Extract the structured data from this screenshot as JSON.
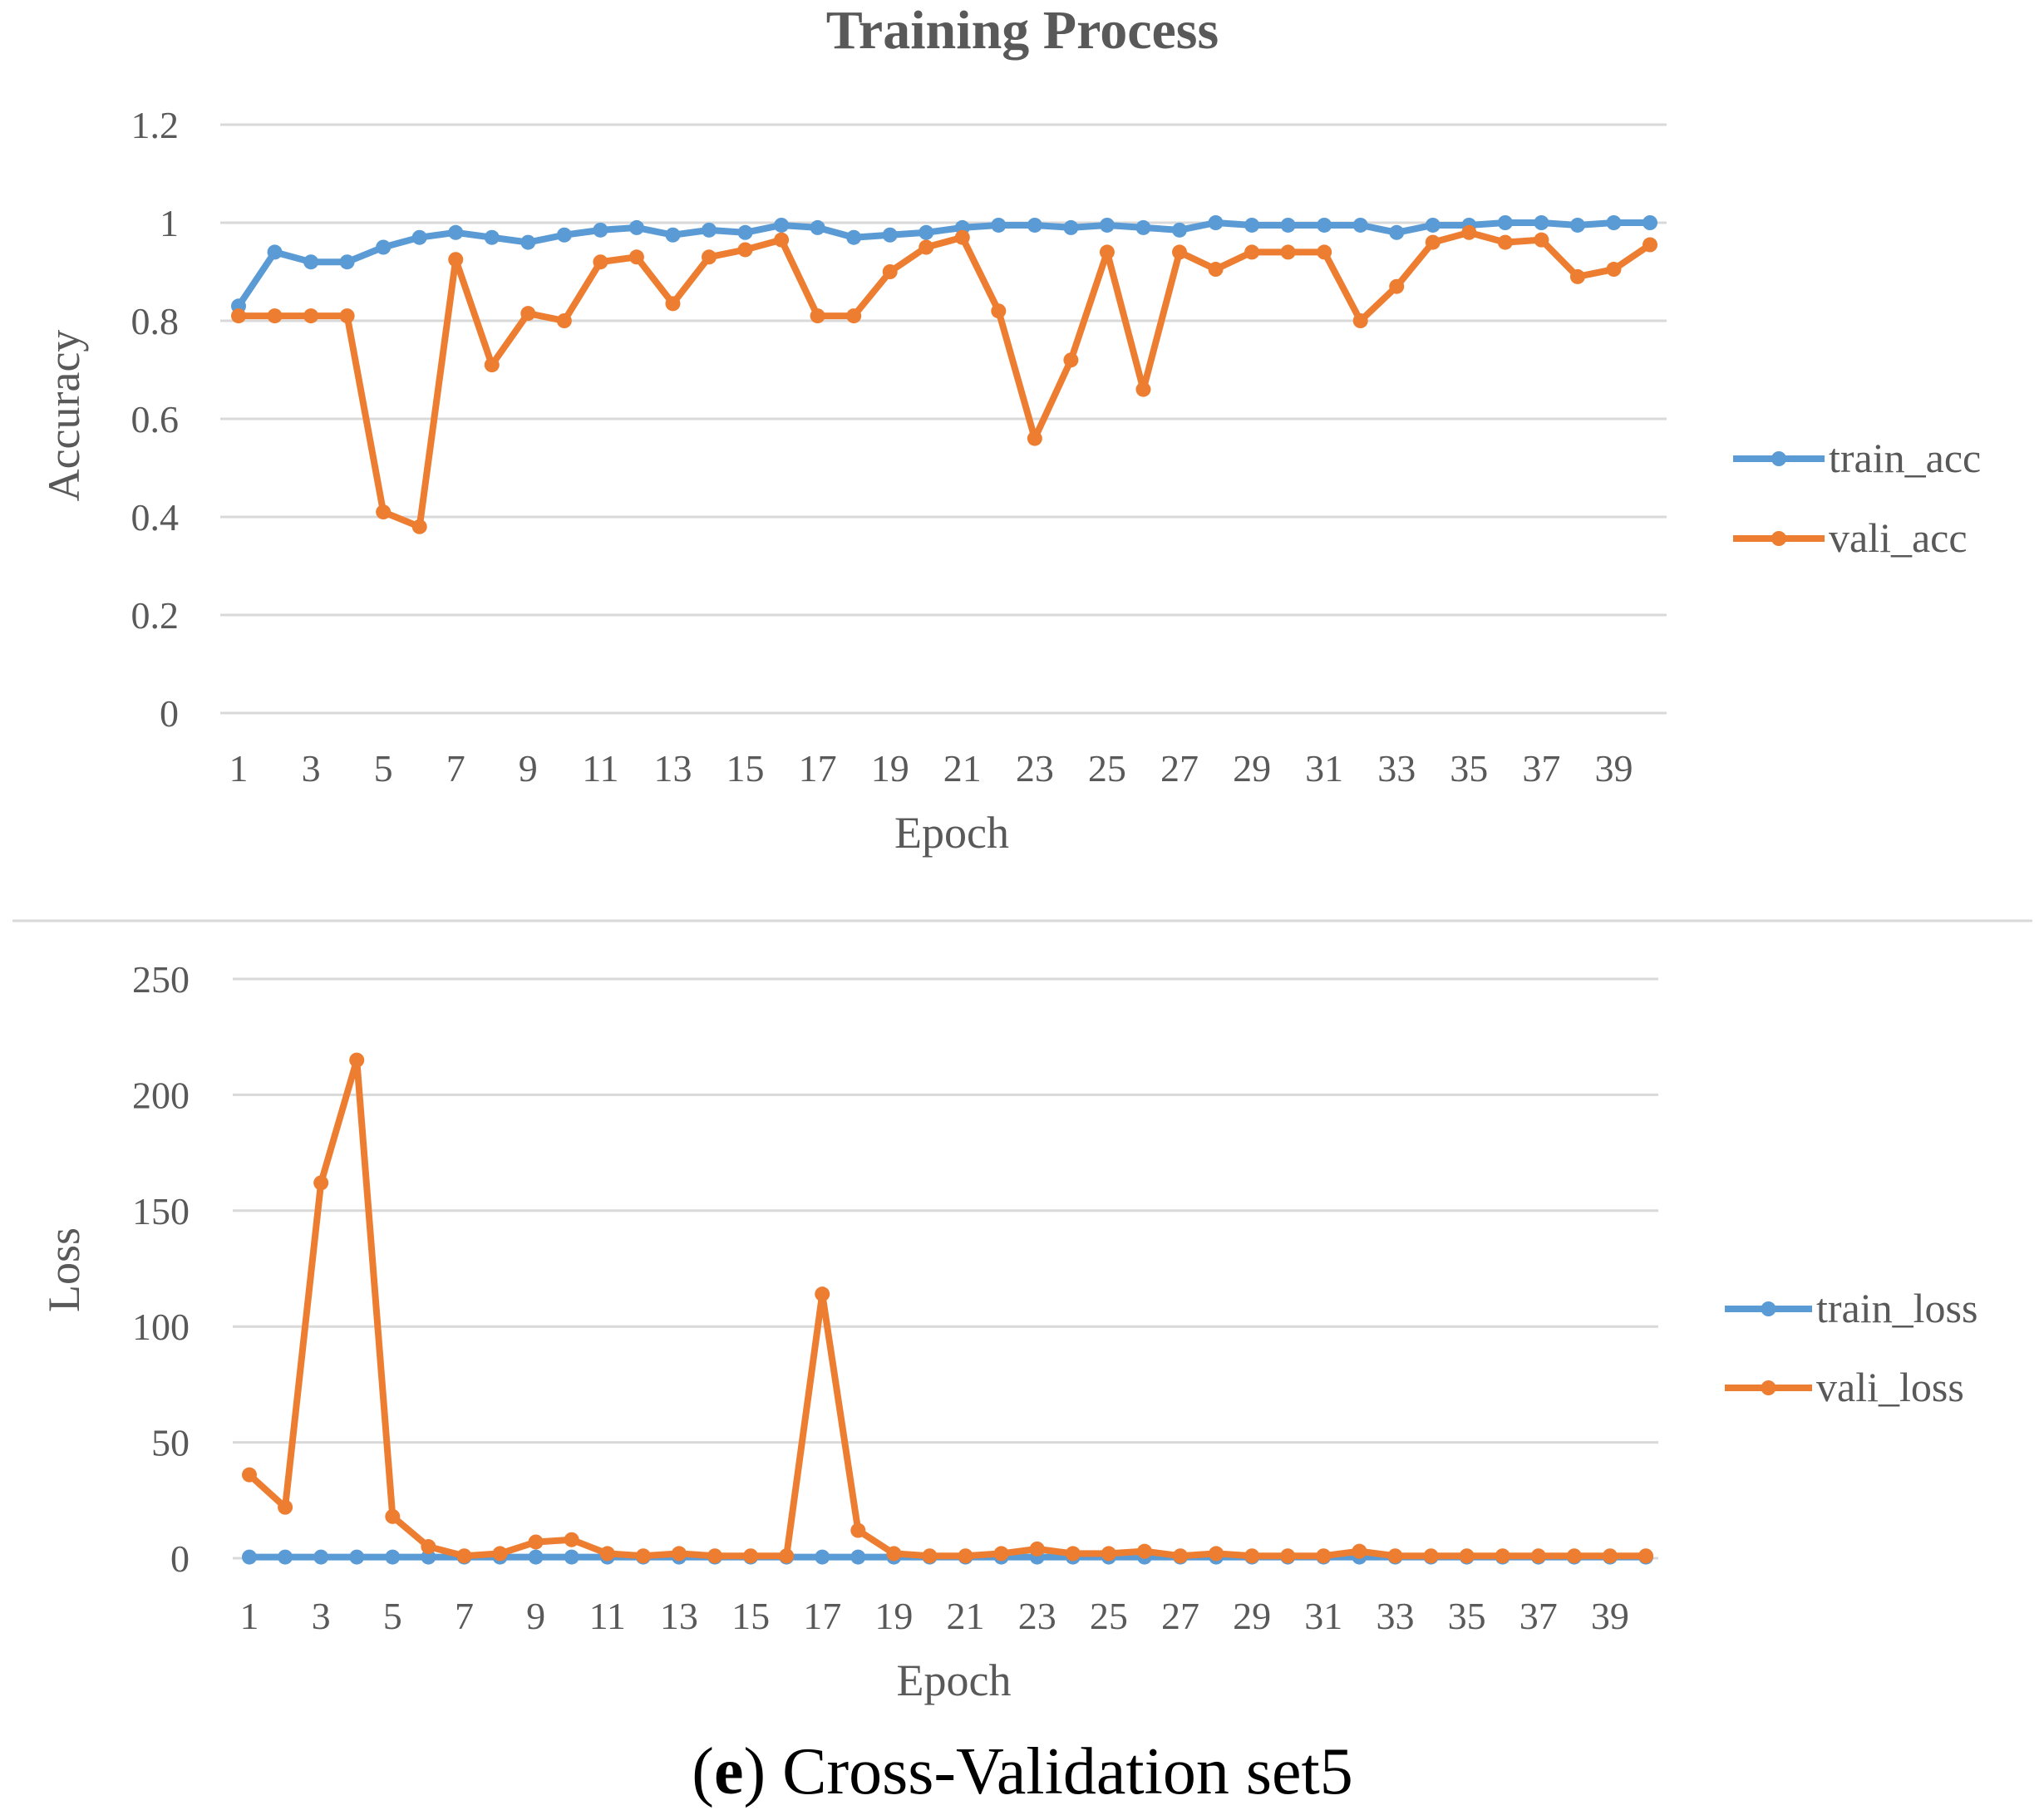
{
  "caption": {
    "label": "e",
    "text": ") Cross-Validation set5",
    "open": "("
  },
  "colors": {
    "train": "#5b9bd5",
    "vali": "#ed7d31",
    "grid": "#d9d9d9",
    "text": "#595959"
  },
  "chart_data": [
    {
      "type": "line",
      "title": "Training Process",
      "xlabel": "Epoch",
      "ylabel": "Accuracy",
      "ylim": [
        0,
        1.2
      ],
      "yticks": [
        "0",
        "0.2",
        "0.4",
        "0.6",
        "0.8",
        "1",
        "1.2"
      ],
      "x": [
        1,
        2,
        3,
        4,
        5,
        6,
        7,
        8,
        9,
        10,
        11,
        12,
        13,
        14,
        15,
        16,
        17,
        18,
        19,
        20,
        21,
        22,
        23,
        24,
        25,
        26,
        27,
        28,
        29,
        30,
        31,
        32,
        33,
        34,
        35,
        36,
        37,
        38,
        39,
        40
      ],
      "xtick_labels": [
        "1",
        "3",
        "5",
        "7",
        "9",
        "11",
        "13",
        "15",
        "17",
        "19",
        "21",
        "23",
        "25",
        "27",
        "29",
        "31",
        "33",
        "35",
        "37",
        "39"
      ],
      "legend_position": "right",
      "series": [
        {
          "name": "train_acc",
          "color": "#5b9bd5",
          "values": [
            0.83,
            0.94,
            0.92,
            0.92,
            0.95,
            0.97,
            0.98,
            0.97,
            0.96,
            0.975,
            0.985,
            0.99,
            0.975,
            0.985,
            0.98,
            0.995,
            0.99,
            0.97,
            0.975,
            0.98,
            0.99,
            0.995,
            0.995,
            0.99,
            0.995,
            0.99,
            0.985,
            1.0,
            0.995,
            0.995,
            0.995,
            0.995,
            0.98,
            0.995,
            0.995,
            1.0,
            1.0,
            0.995,
            1.0,
            1.0
          ]
        },
        {
          "name": "vali_acc",
          "color": "#ed7d31",
          "values": [
            0.81,
            0.81,
            0.81,
            0.81,
            0.41,
            0.38,
            0.925,
            0.71,
            0.815,
            0.8,
            0.92,
            0.93,
            0.835,
            0.93,
            0.945,
            0.965,
            0.81,
            0.81,
            0.9,
            0.95,
            0.97,
            0.82,
            0.56,
            0.72,
            0.94,
            0.66,
            0.94,
            0.905,
            0.94,
            0.94,
            0.94,
            0.8,
            0.87,
            0.96,
            0.98,
            0.96,
            0.965,
            0.89,
            0.905,
            0.955
          ]
        }
      ]
    },
    {
      "type": "line",
      "title": "",
      "xlabel": "Epoch",
      "ylabel": "Loss",
      "ylim": [
        0,
        250
      ],
      "yticks": [
        "0",
        "50",
        "100",
        "150",
        "200",
        "250"
      ],
      "x": [
        1,
        2,
        3,
        4,
        5,
        6,
        7,
        8,
        9,
        10,
        11,
        12,
        13,
        14,
        15,
        16,
        17,
        18,
        19,
        20,
        21,
        22,
        23,
        24,
        25,
        26,
        27,
        28,
        29,
        30,
        31,
        32,
        33,
        34,
        35,
        36,
        37,
        38,
        39,
        40
      ],
      "xtick_labels": [
        "1",
        "3",
        "5",
        "7",
        "9",
        "11",
        "13",
        "15",
        "17",
        "19",
        "21",
        "23",
        "25",
        "27",
        "29",
        "31",
        "33",
        "35",
        "37",
        "39"
      ],
      "legend_position": "right",
      "series": [
        {
          "name": "train_loss",
          "color": "#5b9bd5",
          "values": [
            0.5,
            0.5,
            0.5,
            0.5,
            0.5,
            0.5,
            0.5,
            0.5,
            0.5,
            0.5,
            0.5,
            0.5,
            0.5,
            0.5,
            0.5,
            0.5,
            0.5,
            0.5,
            0.5,
            0.5,
            0.5,
            0.5,
            0.5,
            0.5,
            0.5,
            0.5,
            0.5,
            0.5,
            0.5,
            0.5,
            0.5,
            0.5,
            0.5,
            0.5,
            0.5,
            0.5,
            0.5,
            0.5,
            0.5,
            0.5
          ]
        },
        {
          "name": "vali_loss",
          "color": "#ed7d31",
          "values": [
            36,
            22,
            162,
            215,
            18,
            5,
            1,
            2,
            7,
            8,
            2,
            1,
            2,
            1,
            1,
            1,
            114,
            12,
            2,
            1,
            1,
            2,
            4,
            2,
            2,
            3,
            1,
            2,
            1,
            1,
            1,
            3,
            1,
            1,
            1,
            1,
            1,
            1,
            1,
            1
          ]
        }
      ]
    }
  ]
}
